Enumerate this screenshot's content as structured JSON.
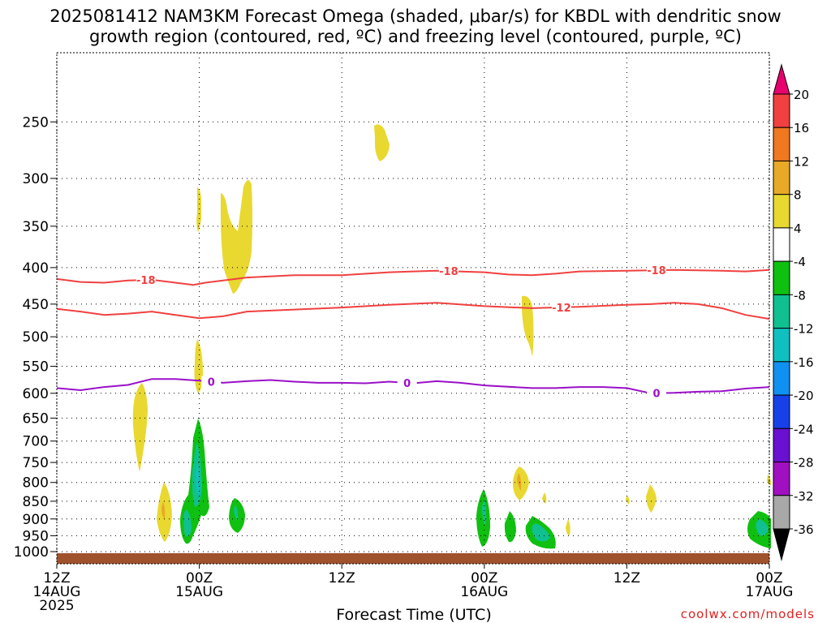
{
  "title_line1": "2025081412 NAM3KM Forecast Omega (shaded, μbar/s) for KBDL with dendritic snow",
  "title_line2": "growth region (contoured, red, ºC) and freezing level (contoured, purple, ºC)",
  "credit": "coolwx.com/models",
  "chart_data": {
    "type": "time-height contour",
    "xlabel": "Forecast Time (UTC)",
    "ylabel": "",
    "x_range_hours": [
      0,
      60
    ],
    "x_ticks": [
      {
        "hour": 0,
        "lines": [
          "12Z",
          "14AUG",
          "2025"
        ]
      },
      {
        "hour": 12,
        "lines": [
          "00Z",
          "15AUG"
        ]
      },
      {
        "hour": 24,
        "lines": [
          "12Z"
        ]
      },
      {
        "hour": 36,
        "lines": [
          "00Z",
          "16AUG"
        ]
      },
      {
        "hour": 48,
        "lines": [
          "12Z"
        ]
      },
      {
        "hour": 60,
        "lines": [
          "00Z",
          "17AUG"
        ]
      }
    ],
    "y_axis": "pressure (hPa), inverted, log scale",
    "y_ticks": [
      250,
      300,
      350,
      400,
      450,
      500,
      550,
      600,
      650,
      700,
      750,
      800,
      850,
      900,
      950,
      1000
    ],
    "y_range_hpa": [
      200,
      1040
    ],
    "grid": true,
    "colorbar": {
      "labels": [
        20,
        16,
        12,
        8,
        4,
        -4,
        -8,
        -12,
        -16,
        -20,
        -24,
        -28,
        -32,
        -36
      ],
      "colors": [
        "#e8006e",
        "#f04040",
        "#f07820",
        "#e8a828",
        "#e8d830",
        "#ffffff",
        "#10c010",
        "#10c090",
        "#10c0c0",
        "#1090f0",
        "#1840e8",
        "#6a10d0",
        "#a010c0",
        "#a8a8a8",
        "#000000"
      ]
    },
    "series": [
      {
        "name": "-18",
        "color": "#f04040",
        "label_hours": [
          7.5,
          33,
          50.5
        ],
        "points": [
          [
            0,
            415
          ],
          [
            2,
            419
          ],
          [
            4,
            420
          ],
          [
            6,
            417
          ],
          [
            8,
            416
          ],
          [
            10,
            420
          ],
          [
            11.5,
            423
          ],
          [
            12.5,
            420
          ],
          [
            14,
            417
          ],
          [
            16,
            413
          ],
          [
            20,
            410
          ],
          [
            24,
            410
          ],
          [
            28,
            406
          ],
          [
            32,
            404
          ],
          [
            36,
            406
          ],
          [
            38,
            409
          ],
          [
            40,
            410
          ],
          [
            42,
            408
          ],
          [
            44,
            405
          ],
          [
            48,
            404
          ],
          [
            52,
            403
          ],
          [
            56,
            404
          ],
          [
            58,
            405
          ],
          [
            60,
            403
          ]
        ]
      },
      {
        "name": "-12",
        "color": "#f04040",
        "label_hours": [
          42.5
        ],
        "points": [
          [
            0,
            457
          ],
          [
            2,
            461
          ],
          [
            4,
            466
          ],
          [
            6,
            464
          ],
          [
            8,
            461
          ],
          [
            10,
            466
          ],
          [
            12,
            471
          ],
          [
            14,
            468
          ],
          [
            16,
            461
          ],
          [
            20,
            458
          ],
          [
            24,
            455
          ],
          [
            28,
            451
          ],
          [
            32,
            448
          ],
          [
            36,
            453
          ],
          [
            40,
            456
          ],
          [
            44,
            454
          ],
          [
            48,
            451
          ],
          [
            50,
            450
          ],
          [
            52,
            448
          ],
          [
            54,
            450
          ],
          [
            56,
            456
          ],
          [
            58,
            466
          ],
          [
            60,
            472
          ]
        ]
      },
      {
        "name": "0",
        "color": "#9a10c8",
        "label_hours": [
          13,
          29.5,
          50.5
        ],
        "points": [
          [
            0,
            590
          ],
          [
            2,
            594
          ],
          [
            4,
            588
          ],
          [
            6,
            584
          ],
          [
            8,
            573
          ],
          [
            10,
            573
          ],
          [
            12,
            576
          ],
          [
            14,
            580
          ],
          [
            16,
            577
          ],
          [
            18,
            575
          ],
          [
            20,
            578
          ],
          [
            22,
            580
          ],
          [
            24,
            580
          ],
          [
            26,
            581
          ],
          [
            28,
            578
          ],
          [
            30,
            581
          ],
          [
            32,
            577
          ],
          [
            34,
            580
          ],
          [
            36,
            585
          ],
          [
            40,
            590
          ],
          [
            42,
            590
          ],
          [
            44,
            588
          ],
          [
            46,
            588
          ],
          [
            48,
            590
          ],
          [
            50,
            600
          ],
          [
            52,
            599
          ],
          [
            54,
            597
          ],
          [
            56,
            596
          ],
          [
            58,
            591
          ],
          [
            60,
            588
          ]
        ]
      }
    ],
    "surface_terrain": {
      "color": "#a0522d",
      "top_hpa": 1005
    }
  }
}
